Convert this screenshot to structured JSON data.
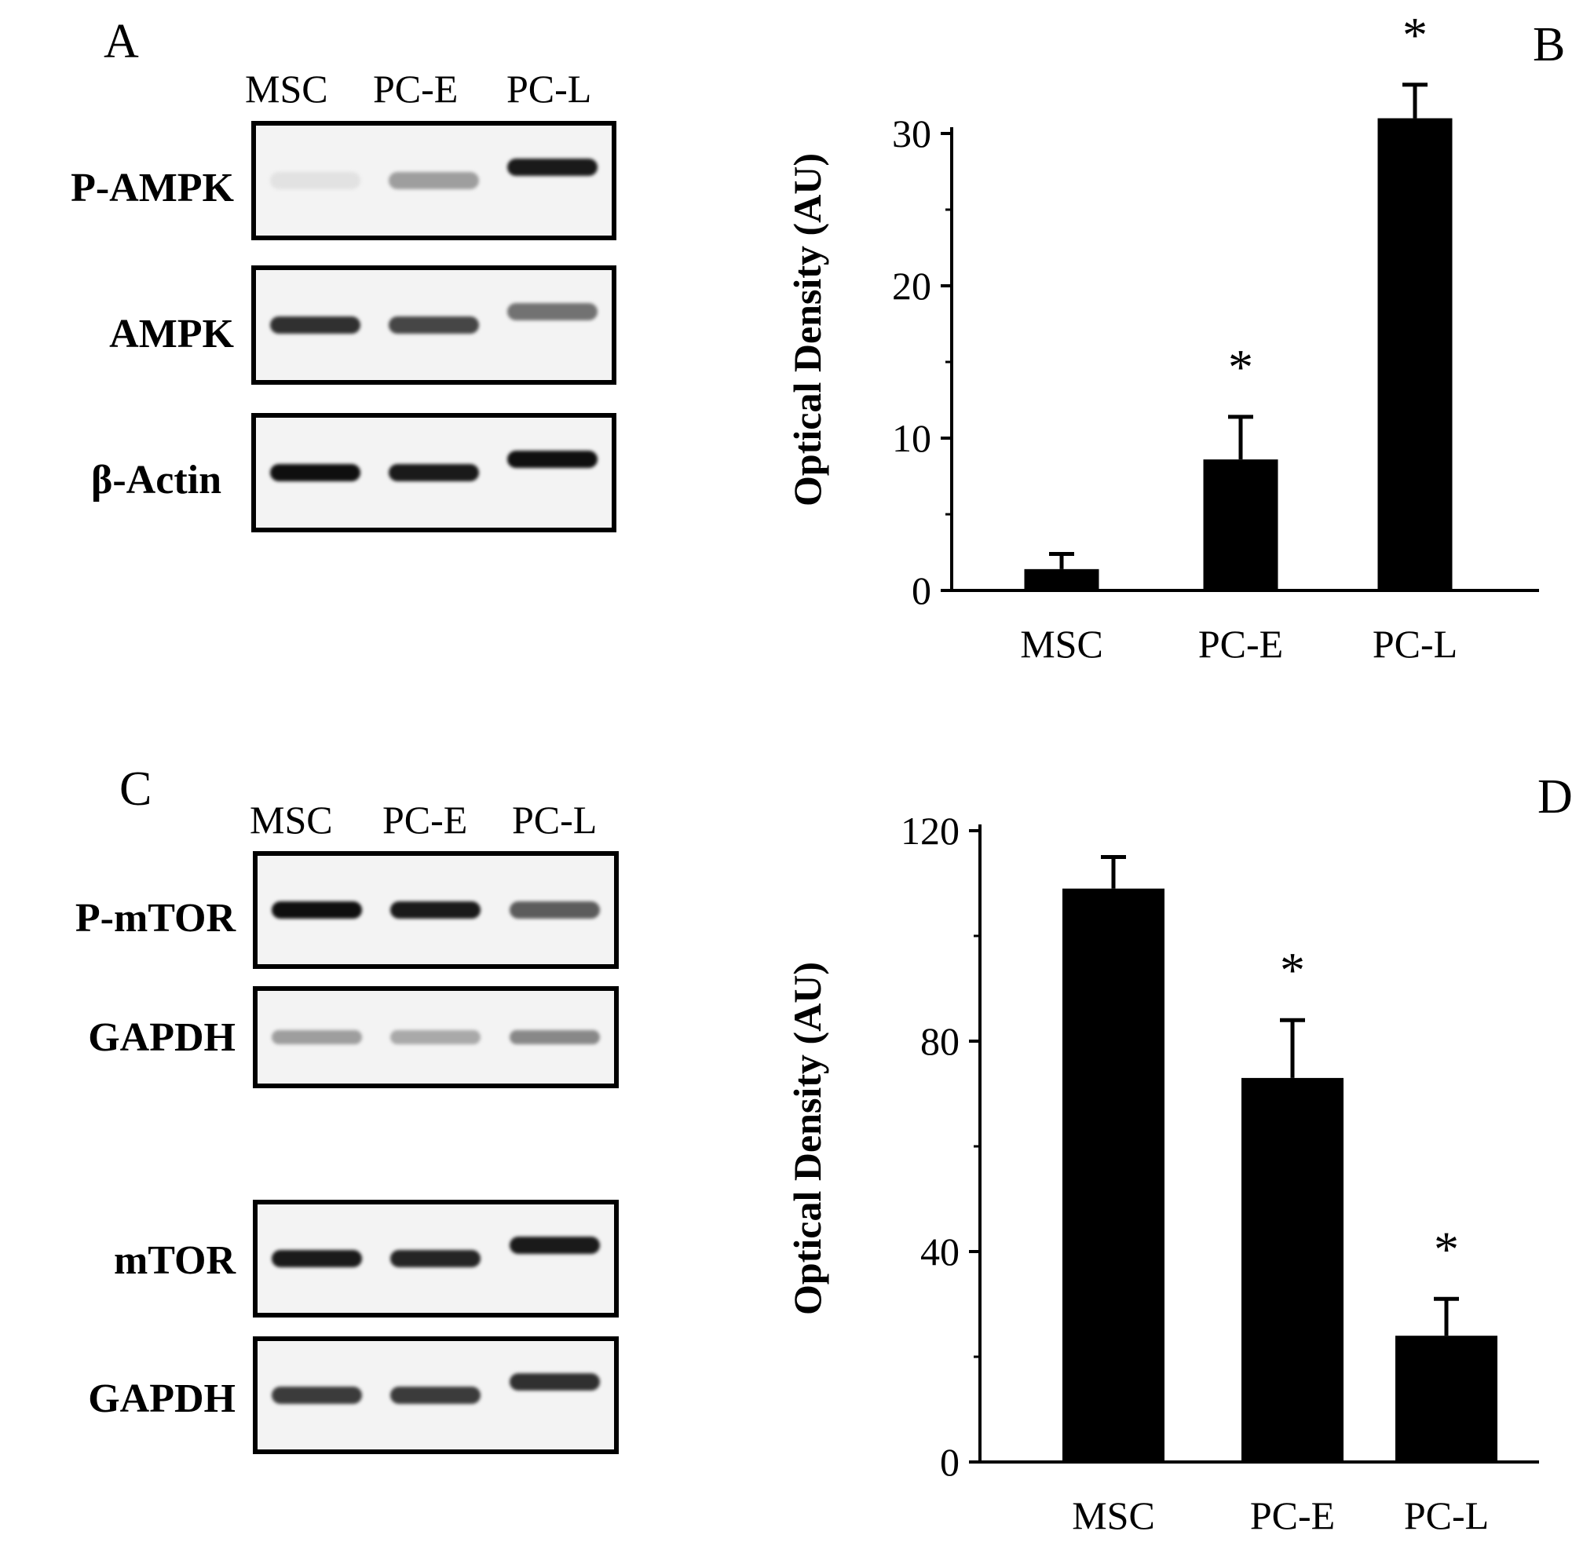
{
  "panels": {
    "A": {
      "letter": "A",
      "lanes": [
        "MSC",
        "PC-E",
        "PC-L"
      ],
      "blots": [
        {
          "label": "P-AMPK",
          "bands": [
            0.04,
            0.35,
            0.95
          ],
          "shift": [
            0,
            0,
            -1
          ]
        },
        {
          "label": "AMPK",
          "bands": [
            0.85,
            0.75,
            0.55
          ],
          "shift": [
            0,
            0,
            -1
          ]
        },
        {
          "label": "β-Actin",
          "bands": [
            1.0,
            0.95,
            1.0
          ],
          "shift": [
            0,
            0,
            -1
          ]
        }
      ]
    },
    "C": {
      "letter": "C",
      "lanes": [
        "MSC",
        "PC-E",
        "PC-L"
      ],
      "blots": [
        {
          "label": "P-mTOR",
          "bands": [
            1.0,
            0.95,
            0.65
          ],
          "shift": [
            0,
            0,
            0
          ]
        },
        {
          "label": "GAPDH",
          "bands": [
            0.35,
            0.3,
            0.45
          ],
          "shift": [
            0,
            0,
            0
          ]
        },
        {
          "label": "mTOR",
          "bands": [
            0.95,
            0.9,
            0.95
          ],
          "shift": [
            0,
            0,
            -1
          ]
        },
        {
          "label": "GAPDH",
          "bands": [
            0.8,
            0.8,
            0.85
          ],
          "shift": [
            0,
            0,
            -1
          ]
        }
      ]
    }
  },
  "chart_data": [
    {
      "panel": "B",
      "type": "bar",
      "categories": [
        "MSC",
        "PC-E",
        "PC-L"
      ],
      "values": [
        1.4,
        8.6,
        31.0
      ],
      "errors": [
        1.0,
        2.8,
        2.2
      ],
      "significance": [
        "",
        "*",
        "*"
      ],
      "ylabel": "Optical Density (AU)",
      "ylim": [
        0,
        30
      ],
      "yticks": [
        0,
        10,
        20,
        30
      ],
      "bar_color": "#000000"
    },
    {
      "panel": "D",
      "type": "bar",
      "categories": [
        "MSC",
        "PC-E",
        "PC-L"
      ],
      "values": [
        109,
        73,
        24
      ],
      "errors": [
        6,
        11,
        7
      ],
      "significance": [
        "",
        "*",
        "*"
      ],
      "ylabel": "Optical Density (AU)",
      "ylim": [
        0,
        120
      ],
      "yticks": [
        0,
        40,
        80,
        120
      ],
      "bar_color": "#000000"
    }
  ]
}
